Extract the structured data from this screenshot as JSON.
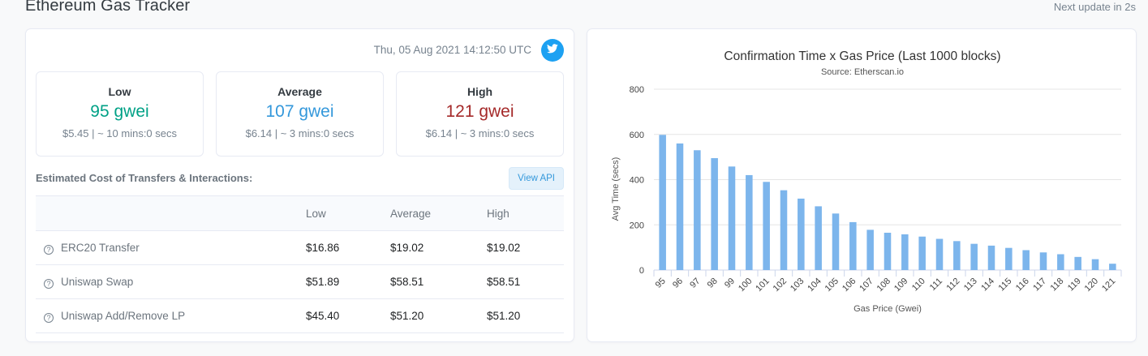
{
  "header": {
    "title": "Ethereum Gas Tracker",
    "next_update": "Next update in 2s"
  },
  "gas": {
    "timestamp": "Thu, 05 Aug 2021 14:12:50 UTC",
    "low": {
      "label": "Low",
      "value": "95 gwei",
      "sub": "$5.45 | ~ 10 mins:0 secs",
      "color": "#00a186"
    },
    "average": {
      "label": "Average",
      "value": "107 gwei",
      "sub": "$6.14 | ~ 3 mins:0 secs",
      "color": "#3498db"
    },
    "high": {
      "label": "High",
      "value": "121 gwei",
      "sub": "$6.14 | ~ 3 mins:0 secs",
      "color": "#a52a2a"
    }
  },
  "costs": {
    "title": "Estimated Cost of Transfers & Interactions:",
    "view_api": "View API",
    "columns": [
      "",
      "Low",
      "Average",
      "High"
    ],
    "rows": [
      {
        "name": "ERC20 Transfer",
        "low": "$16.86",
        "average": "$19.02",
        "high": "$19.02"
      },
      {
        "name": "Uniswap Swap",
        "low": "$51.89",
        "average": "$58.51",
        "high": "$58.51"
      },
      {
        "name": "Uniswap Add/Remove LP",
        "low": "$45.40",
        "average": "$51.20",
        "high": "$51.20"
      }
    ]
  },
  "icons": {
    "twitter": "twitter-icon",
    "help": "question-circle-icon"
  },
  "chart_data": {
    "type": "bar",
    "title": "Confirmation Time x Gas Price (Last 1000 blocks)",
    "subtitle": "Source: Etherscan.io",
    "xlabel": "Gas Price (Gwei)",
    "ylabel": "Avg Time (secs)",
    "ylim": [
      0,
      800
    ],
    "yticks": [
      0,
      200,
      400,
      600,
      800
    ],
    "grid": true,
    "color": "#7cb5ec",
    "categories": [
      "95",
      "96",
      "97",
      "98",
      "99",
      "100",
      "101",
      "102",
      "103",
      "104",
      "105",
      "106",
      "107",
      "108",
      "109",
      "110",
      "111",
      "112",
      "113",
      "114",
      "115",
      "116",
      "117",
      "118",
      "119",
      "120",
      "121"
    ],
    "values": [
      598,
      560,
      530,
      495,
      458,
      420,
      390,
      353,
      316,
      282,
      250,
      212,
      178,
      165,
      158,
      148,
      138,
      128,
      116,
      108,
      98,
      88,
      78,
      70,
      58,
      48,
      28
    ]
  }
}
